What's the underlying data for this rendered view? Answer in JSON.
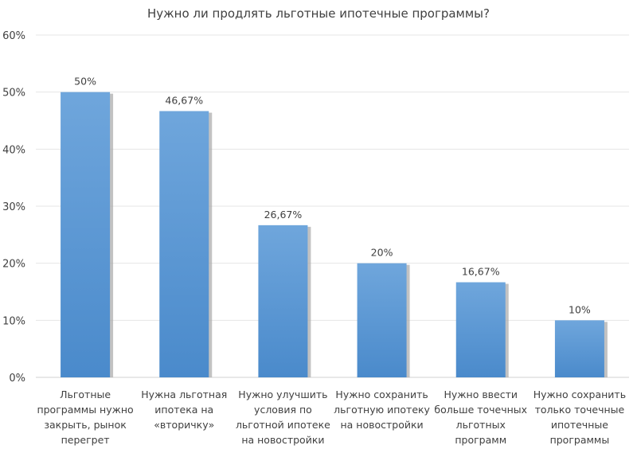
{
  "chart_data": {
    "type": "bar",
    "title": "Нужно ли продлять льготные ипотечные программы?",
    "categories": [
      [
        "Льготные",
        "программы нужно",
        "закрыть, рынок",
        "перегрет"
      ],
      [
        "Нужна льготная",
        "ипотека на",
        "«вторичку»"
      ],
      [
        "Нужно улучшить",
        "условия по",
        "льготной ипотеке",
        "на новостройки"
      ],
      [
        "Нужно сохранить",
        "льготную ипотеку",
        "на новостройки"
      ],
      [
        "Нужно ввести",
        "больше точечных",
        "льготных",
        "программ"
      ],
      [
        "Нужно сохранить",
        "только точечные",
        "ипотечные",
        "программы"
      ]
    ],
    "values": [
      50,
      46.67,
      26.67,
      20,
      16.67,
      10
    ],
    "data_labels": [
      "50%",
      "46,67%",
      "26,67%",
      "20%",
      "16,67%",
      "10%"
    ],
    "ylim": [
      0,
      60
    ],
    "yticks": [
      "0%",
      "10%",
      "20%",
      "30%",
      "40%",
      "50%",
      "60%"
    ],
    "grid": true,
    "legend": "none",
    "bar_color": "#5b9bd5"
  }
}
